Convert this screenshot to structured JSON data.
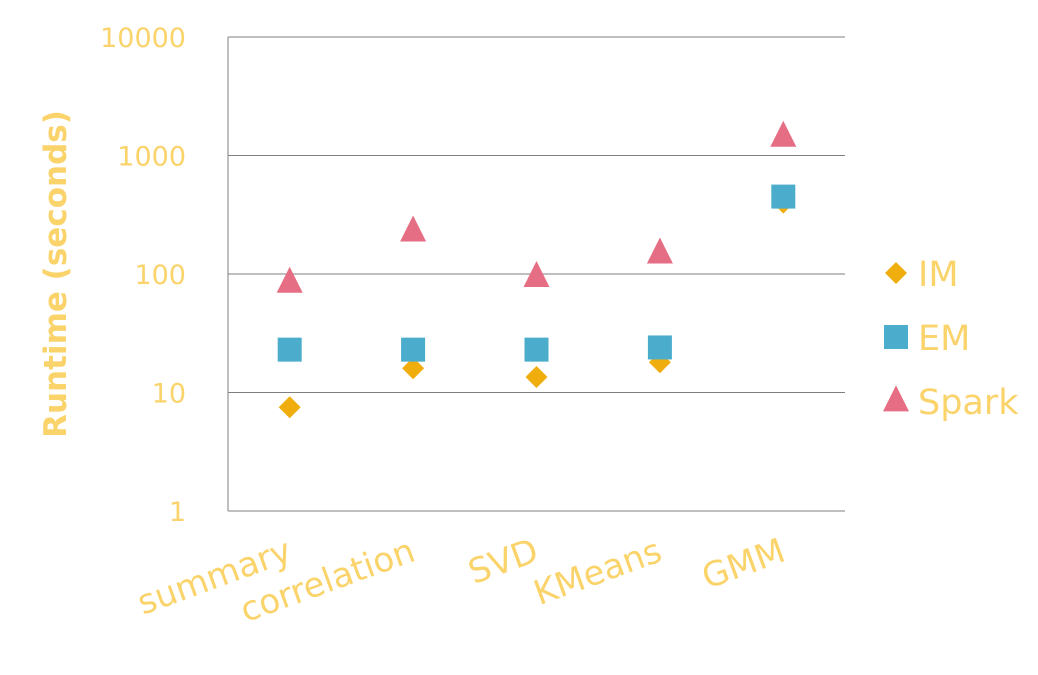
{
  "colors": {
    "text": "#FAD36B",
    "axis": "#7F7F7F",
    "grid": "#7F7F7F",
    "background": "#FFFFFF"
  },
  "chart_data": {
    "type": "scatter",
    "title": "",
    "xlabel": "",
    "ylabel": "Runtime (seconds)",
    "y_scale": "log",
    "ylim": [
      1,
      10000
    ],
    "y_ticks": [
      1,
      10,
      100,
      1000,
      10000
    ],
    "y_tick_labels": [
      "1",
      "10",
      "100",
      "1000",
      "10000"
    ],
    "grid": "horizontal",
    "legend_position": "right",
    "categories": [
      "summary",
      "correlation",
      "SVD",
      "KMeans",
      "GMM"
    ],
    "series": [
      {
        "name": "IM",
        "marker": "diamond",
        "color": "#F0AE0E",
        "values": [
          7.5,
          16,
          13.5,
          18,
          400
        ]
      },
      {
        "name": "EM",
        "marker": "square",
        "color": "#4BADCB",
        "values": [
          23,
          23,
          23,
          24,
          450
        ]
      },
      {
        "name": "Spark",
        "marker": "triangle",
        "color": "#E66E84",
        "values": [
          85,
          230,
          95,
          150,
          1450
        ]
      }
    ]
  }
}
